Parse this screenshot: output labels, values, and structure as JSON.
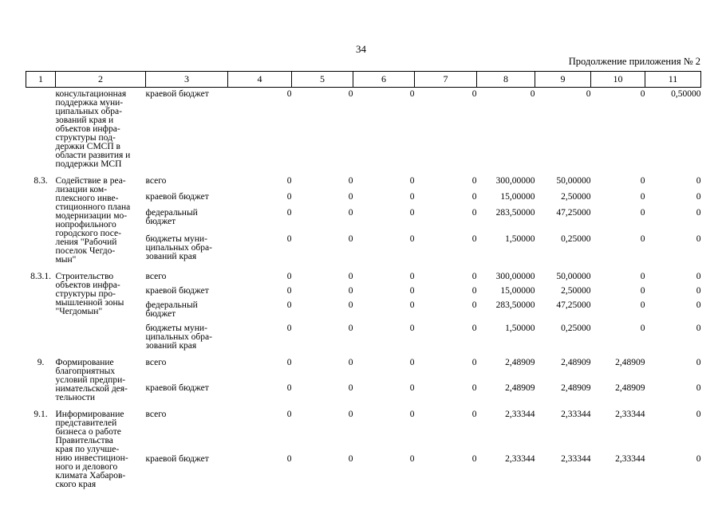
{
  "page": {
    "number": "34",
    "continuation_label": "Продолжение приложения № 2"
  },
  "table": {
    "column_numbers": [
      "1",
      "2",
      "3",
      "4",
      "5",
      "6",
      "7",
      "8",
      "9",
      "10",
      "11"
    ],
    "row_groups": [
      {
        "num": "",
        "title_lines": [
          "консультационная",
          "поддержка муни-",
          "ципальных обра-",
          "зований края и",
          "объектов инфра-",
          "структуры под-",
          "держки СМСП в",
          "области развития и",
          "поддержки МСП"
        ],
        "budgets": [
          {
            "label_lines": [
              "краевой бюджет"
            ],
            "values": [
              "0",
              "0",
              "0",
              "0",
              "0",
              "0",
              "0",
              "0,50000"
            ]
          }
        ]
      },
      {
        "num": "8.3.",
        "title_lines": [
          "Содействие в реа-",
          "лизации ком-",
          "плексного инве-",
          "стиционного плана",
          "модернизации мо-",
          "нопрофильного",
          "городского посе-",
          "ления \"Рабочий",
          "поселок Чегдо-",
          "мын\""
        ],
        "budgets": [
          {
            "label_lines": [
              "всего"
            ],
            "values": [
              "0",
              "0",
              "0",
              "0",
              "300,00000",
              "50,00000",
              "0",
              "0"
            ]
          },
          {
            "label_lines": [
              "краевой бюджет"
            ],
            "values": [
              "0",
              "0",
              "0",
              "0",
              "15,00000",
              "2,50000",
              "0",
              "0"
            ]
          },
          {
            "label_lines": [
              "федеральный",
              "бюджет"
            ],
            "values": [
              "0",
              "0",
              "0",
              "0",
              "283,50000",
              "47,25000",
              "0",
              "0"
            ]
          },
          {
            "label_lines": [
              "бюджеты муни-",
              "ципальных обра-",
              "зований края"
            ],
            "values": [
              "0",
              "0",
              "0",
              "0",
              "1,50000",
              "0,25000",
              "0",
              "0"
            ]
          }
        ]
      },
      {
        "num": "8.3.1.",
        "title_lines": [
          "Строительство",
          "объектов инфра-",
          "структуры про-",
          "мышленной зоны",
          "\"Чегдомын\""
        ],
        "budgets": [
          {
            "label_lines": [
              "всего"
            ],
            "values": [
              "0",
              "0",
              "0",
              "0",
              "300,00000",
              "50,00000",
              "0",
              "0"
            ]
          },
          {
            "label_lines": [
              "краевой бюджет"
            ],
            "values": [
              "0",
              "0",
              "0",
              "0",
              "15,00000",
              "2,50000",
              "0",
              "0"
            ]
          },
          {
            "label_lines": [
              "федеральный",
              "бюджет"
            ],
            "values": [
              "0",
              "0",
              "0",
              "0",
              "283,50000",
              "47,25000",
              "0",
              "0"
            ]
          },
          {
            "label_lines": [
              "бюджеты муни-",
              "ципальных обра-",
              "зований края"
            ],
            "values": [
              "0",
              "0",
              "0",
              "0",
              "1,50000",
              "0,25000",
              "0",
              "0"
            ]
          }
        ]
      },
      {
        "num": "9.",
        "title_lines": [
          "Формирование",
          "благоприятных",
          "условий предпри-",
          "нимательской дея-",
          "тельности"
        ],
        "budgets": [
          {
            "label_lines": [
              "всего"
            ],
            "values": [
              "0",
              "0",
              "0",
              "0",
              "2,48909",
              "2,48909",
              "2,48909",
              "0"
            ]
          },
          {
            "label_lines": [
              "краевой бюджет"
            ],
            "values": [
              "0",
              "0",
              "0",
              "0",
              "2,48909",
              "2,48909",
              "2,48909",
              "0"
            ]
          }
        ]
      },
      {
        "num": "9.1.",
        "title_lines": [
          "Информирование",
          "представителей",
          "бизнеса о работе",
          "Правительства",
          "края по улучше-",
          "нию инвестицион-",
          "ного и делового",
          "климата Хабаров-",
          "ского края"
        ],
        "budgets": [
          {
            "label_lines": [
              "всего"
            ],
            "values": [
              "0",
              "0",
              "0",
              "0",
              "2,33344",
              "2,33344",
              "2,33344",
              "0"
            ]
          },
          {
            "label_lines": [
              "краевой бюджет"
            ],
            "values": [
              "0",
              "0",
              "0",
              "0",
              "2,33344",
              "2,33344",
              "2,33344",
              "0"
            ]
          }
        ]
      }
    ]
  }
}
